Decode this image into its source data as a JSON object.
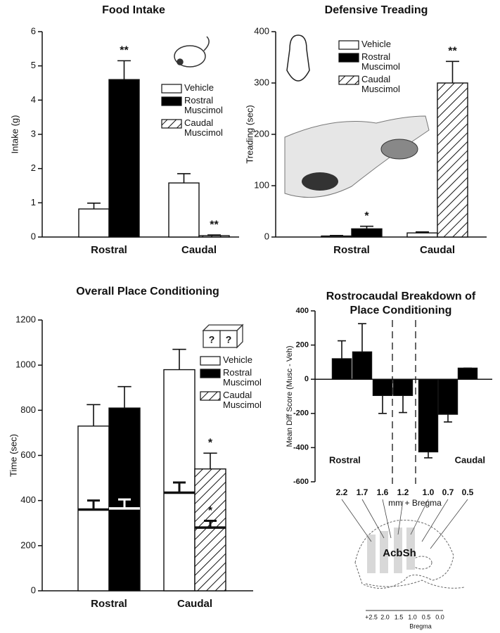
{
  "chart_data": [
    {
      "type": "bar",
      "title": "Food Intake",
      "ylabel": "Intake (g)",
      "categories": [
        "Rostral",
        "Caudal"
      ],
      "series": [
        {
          "name": "Vehicle",
          "color": "#ffffff",
          "values": [
            0.82,
            1.58
          ],
          "errors": [
            0.17,
            0.27
          ]
        },
        {
          "name": "Rostral Muscimol",
          "color": "#000000",
          "values": [
            4.6,
            null
          ],
          "errors": [
            0.55,
            null
          ],
          "marks": [
            "**",
            null
          ]
        },
        {
          "name": "Caudal Muscimol",
          "color": "#ffffff",
          "hatch": true,
          "values": [
            null,
            0.04
          ],
          "errors": [
            null,
            0.02
          ],
          "marks": [
            null,
            "**"
          ]
        }
      ],
      "ylim": [
        0,
        6
      ],
      "yticks": [
        0,
        1,
        2,
        3,
        4,
        5,
        6
      ],
      "legend": "upper right"
    },
    {
      "type": "bar",
      "title": "Defensive Treading",
      "ylabel": "Treading (sec)",
      "categories": [
        "Rostral",
        "Caudal"
      ],
      "series": [
        {
          "name": "Vehicle",
          "color": "#ffffff",
          "values": [
            2,
            8
          ],
          "errors": [
            1,
            2
          ]
        },
        {
          "name": "Rostral Muscimol",
          "color": "#000000",
          "values": [
            16,
            null
          ],
          "errors": [
            5,
            null
          ],
          "marks": [
            "*",
            null
          ]
        },
        {
          "name": "Caudal Muscimol",
          "color": "#ffffff",
          "hatch": true,
          "values": [
            null,
            300
          ],
          "errors": [
            null,
            42
          ],
          "marks": [
            null,
            "**"
          ]
        }
      ],
      "ylim": [
        0,
        400
      ],
      "yticks": [
        0,
        100,
        200,
        300,
        400
      ],
      "legend": "upper left"
    },
    {
      "type": "bar",
      "title": "Overall Place Conditioning",
      "ylabel": "Time (sec)",
      "categories": [
        "Rostral",
        "Caudal"
      ],
      "series": [
        {
          "name": "Vehicle",
          "color": "#ffffff",
          "values": [
            730,
            980
          ],
          "errors": [
            95,
            90
          ],
          "inner_values": [
            360,
            435
          ],
          "inner_errors": [
            40,
            45
          ]
        },
        {
          "name": "Rostral Muscimol",
          "color": "#000000",
          "values": [
            810,
            null
          ],
          "errors": [
            95,
            null
          ],
          "inner_values": [
            365,
            null
          ],
          "inner_errors": [
            40,
            null
          ]
        },
        {
          "name": "Caudal Muscimol",
          "color": "#ffffff",
          "hatch": true,
          "values": [
            null,
            540
          ],
          "errors": [
            null,
            70
          ],
          "marks": [
            null,
            "*"
          ],
          "inner_values": [
            null,
            280
          ],
          "inner_errors": [
            null,
            30
          ],
          "inner_marks": [
            null,
            "*"
          ]
        }
      ],
      "ylim": [
        0,
        1200
      ],
      "yticks": [
        0,
        200,
        400,
        600,
        800,
        1000,
        1200
      ],
      "legend": "upper right",
      "icon_labels": [
        "?",
        "?"
      ]
    },
    {
      "type": "bar",
      "title": "Rostrocaudal Breakdown of Place Conditioning",
      "ylabel": "Mean Diff Score (Musc - Veh)",
      "xlabel": "mm + Bregma",
      "categories": [
        "2.2",
        "1.7",
        "1.6",
        "1.2",
        "1.0",
        "0.7",
        "0.5"
      ],
      "values": [
        120,
        160,
        -95,
        -95,
        -425,
        -205,
        65
      ],
      "errors": [
        105,
        165,
        105,
        100,
        35,
        45,
        0
      ],
      "color": "#000000",
      "ylim": [
        -600,
        400
      ],
      "yticks": [
        -600,
        -400,
        -200,
        0,
        200,
        400
      ],
      "region_labels": [
        "Rostral",
        "Caudal"
      ],
      "diagram": {
        "label": "AcbSh",
        "scale": [
          "+2.5",
          "2.0",
          "1.5",
          "1.0",
          "0.5",
          "0.0"
        ],
        "scale_title": "Bregma"
      }
    }
  ]
}
